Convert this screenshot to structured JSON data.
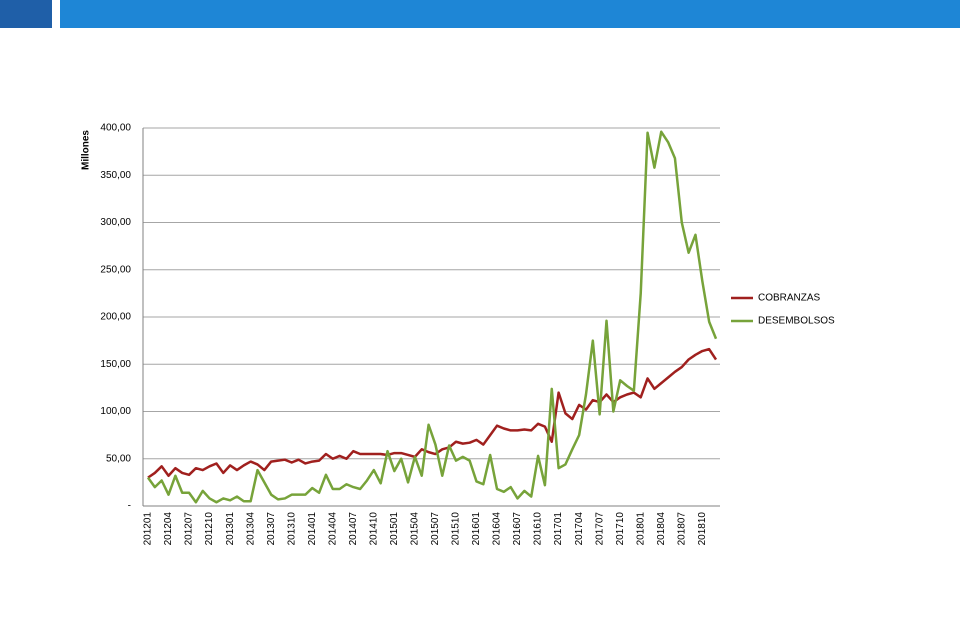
{
  "chart_data": {
    "type": "line",
    "y_label": "Millones",
    "categories": [
      "201201",
      null,
      null,
      "201204",
      null,
      null,
      "201207",
      null,
      null,
      "201210",
      null,
      null,
      "201301",
      null,
      null,
      "201304",
      null,
      null,
      "201307",
      null,
      null,
      "201310",
      null,
      null,
      "201401",
      null,
      null,
      "201404",
      null,
      null,
      "201407",
      null,
      null,
      "201410",
      null,
      null,
      "201501",
      null,
      null,
      "201504",
      null,
      null,
      "201507",
      null,
      null,
      "201510",
      null,
      null,
      "201601",
      null,
      null,
      "201604",
      null,
      null,
      "201607",
      null,
      null,
      "201610",
      null,
      null,
      "201701",
      null,
      null,
      "201704",
      null,
      null,
      "201707",
      null,
      null,
      "201710",
      null,
      null,
      "201801",
      null,
      null,
      "201804",
      null,
      null,
      "201807",
      null,
      null,
      "201810",
      null,
      null
    ],
    "series": [
      {
        "name": "COBRANZAS",
        "color": "#a0201e",
        "values": [
          30,
          35,
          42,
          32,
          40,
          35,
          33,
          40,
          38,
          42,
          45,
          35,
          43,
          38,
          43,
          47,
          44,
          38,
          47,
          48,
          49,
          46,
          49,
          45,
          47,
          48,
          55,
          50,
          53,
          50,
          58,
          55,
          55,
          55,
          55,
          54,
          56,
          56,
          54,
          52,
          60,
          57,
          55,
          60,
          62,
          68,
          66,
          67,
          70,
          65,
          75,
          85,
          82,
          80,
          80,
          81,
          80,
          87,
          84,
          68,
          120,
          98,
          92,
          107,
          102,
          112,
          110,
          118,
          110,
          115,
          118,
          120,
          115,
          135,
          124,
          130,
          136,
          142,
          147,
          155,
          160,
          164,
          166,
          155
        ]
      },
      {
        "name": "DESEMBOLSOS",
        "color": "#77a33a",
        "values": [
          30,
          20,
          27,
          12,
          32,
          14,
          14,
          4,
          16,
          8,
          4,
          8,
          6,
          10,
          5,
          5,
          38,
          25,
          12,
          7,
          8,
          12,
          12,
          12,
          19,
          14,
          33,
          18,
          18,
          23,
          20,
          18,
          27,
          38,
          24,
          58,
          37,
          50,
          25,
          52,
          32,
          86,
          65,
          32,
          64,
          48,
          52,
          48,
          26,
          23,
          54,
          18,
          15,
          20,
          8,
          16,
          10,
          53,
          22,
          124,
          40,
          44,
          60,
          75,
          118,
          175,
          97,
          196,
          100,
          133,
          127,
          122,
          225,
          395,
          358,
          396,
          385,
          368,
          300,
          268,
          287,
          238,
          195,
          177
        ]
      }
    ],
    "ylim": [
      0,
      400
    ],
    "yticks": [
      {
        "value": 0,
        "label": "-"
      },
      {
        "value": 50,
        "label": "50,00"
      },
      {
        "value": 100,
        "label": "100,00"
      },
      {
        "value": 150,
        "label": "150,00"
      },
      {
        "value": 200,
        "label": "200,00"
      },
      {
        "value": 250,
        "label": "250,00"
      },
      {
        "value": 300,
        "label": "300,00"
      },
      {
        "value": 350,
        "label": "350,00"
      },
      {
        "value": 400,
        "label": "400,00"
      }
    ],
    "grid": true,
    "legend": "right"
  }
}
